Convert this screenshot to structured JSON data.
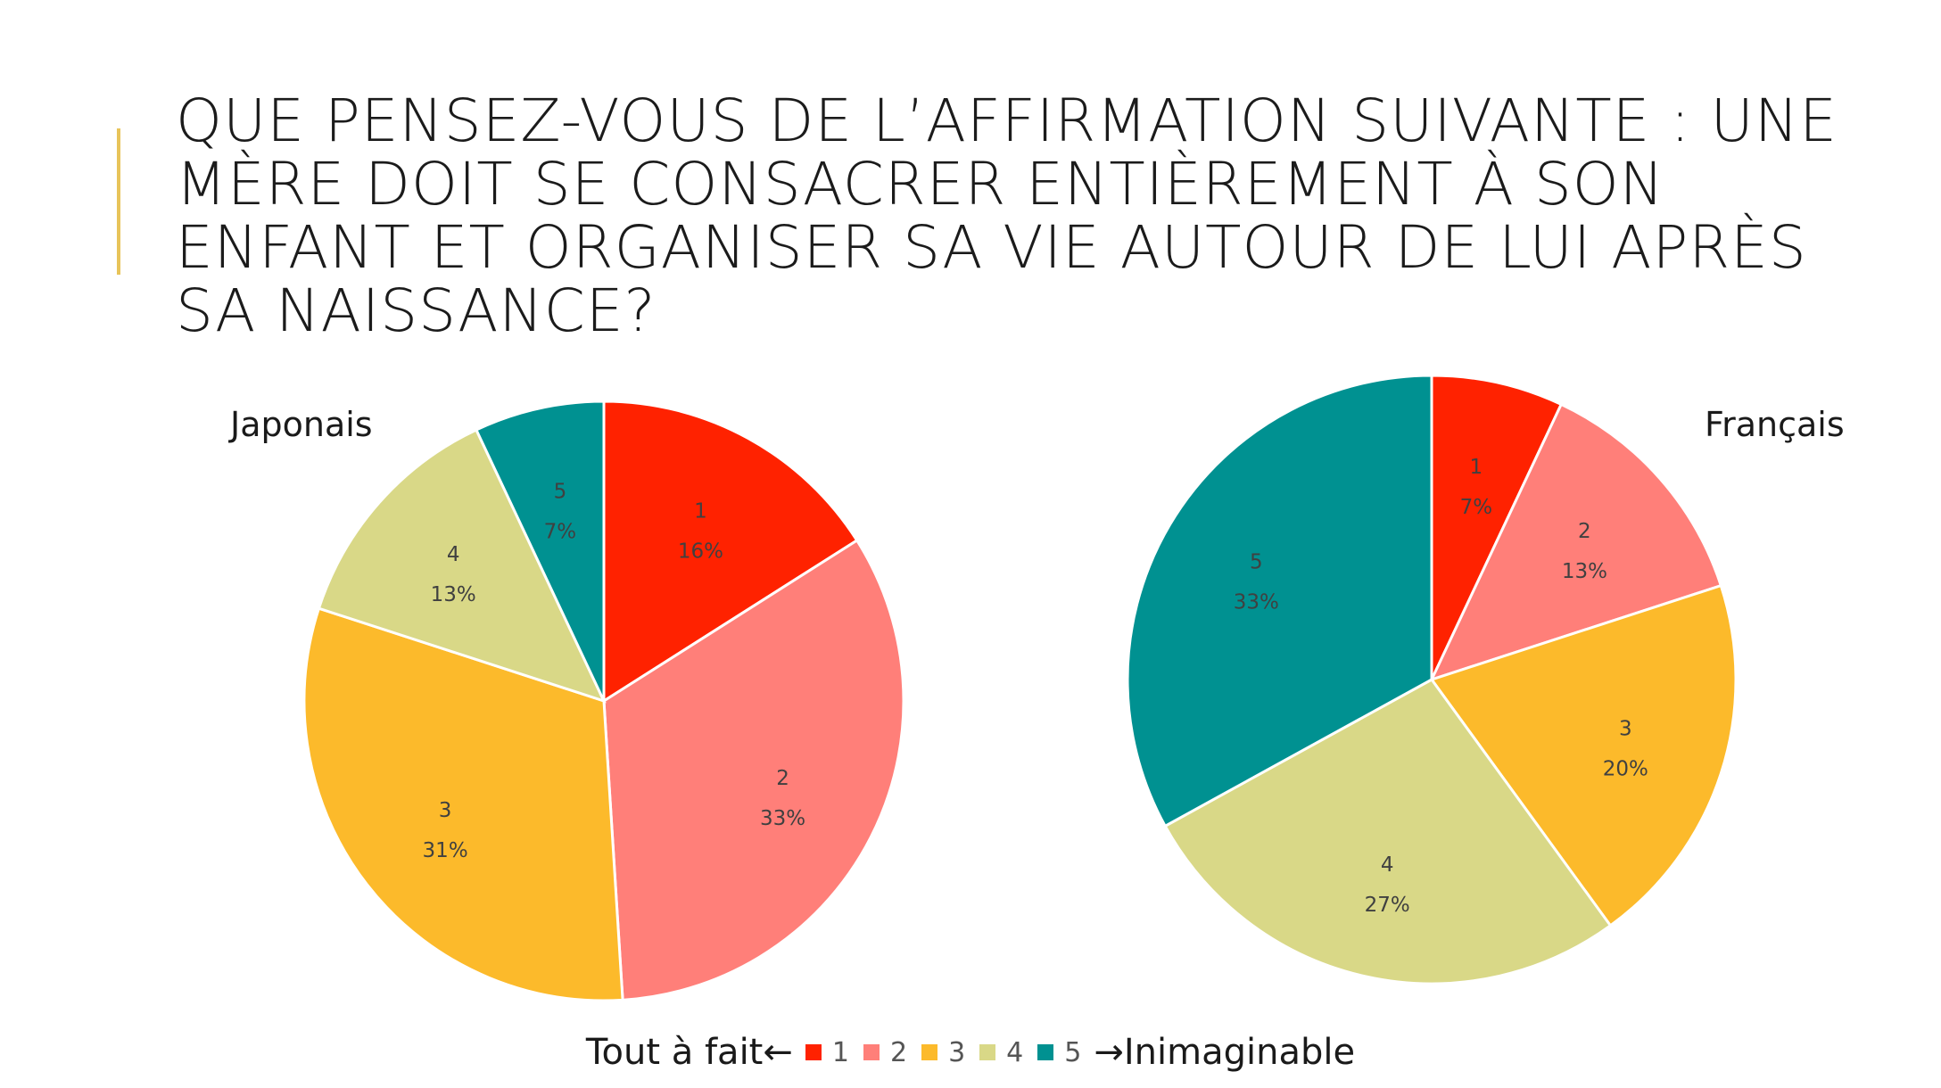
{
  "slide": {
    "title": "Que pensez-vous de l’affirmation suivante : Une mère doit se consacrer entièrement à son enfant et organiser sa vie autour de lui après sa naissance?",
    "accent_color": "#e8c45a"
  },
  "legend": {
    "left_text": "Tout à fait←",
    "right_text": "→Inimaginable"
  },
  "chart_data": [
    {
      "type": "pie",
      "title": "Japonais",
      "categories": [
        "1",
        "2",
        "3",
        "4",
        "5"
      ],
      "values": [
        16,
        33,
        31,
        13,
        7
      ],
      "labels": [
        "16%",
        "33%",
        "31%",
        "13%",
        "7%"
      ],
      "colors": [
        "#ff2200",
        "#ff7f79",
        "#fcba2b",
        "#d9d887",
        "#009191"
      ],
      "legend_position": "bottom"
    },
    {
      "type": "pie",
      "title": "Français",
      "categories": [
        "1",
        "2",
        "3",
        "4",
        "5"
      ],
      "values": [
        7,
        13,
        20,
        27,
        33
      ],
      "labels": [
        "7%",
        "13%",
        "20%",
        "27%",
        "33%"
      ],
      "colors": [
        "#ff2200",
        "#ff7f79",
        "#fcba2b",
        "#d9d887",
        "#009191"
      ],
      "legend_position": "bottom"
    }
  ]
}
